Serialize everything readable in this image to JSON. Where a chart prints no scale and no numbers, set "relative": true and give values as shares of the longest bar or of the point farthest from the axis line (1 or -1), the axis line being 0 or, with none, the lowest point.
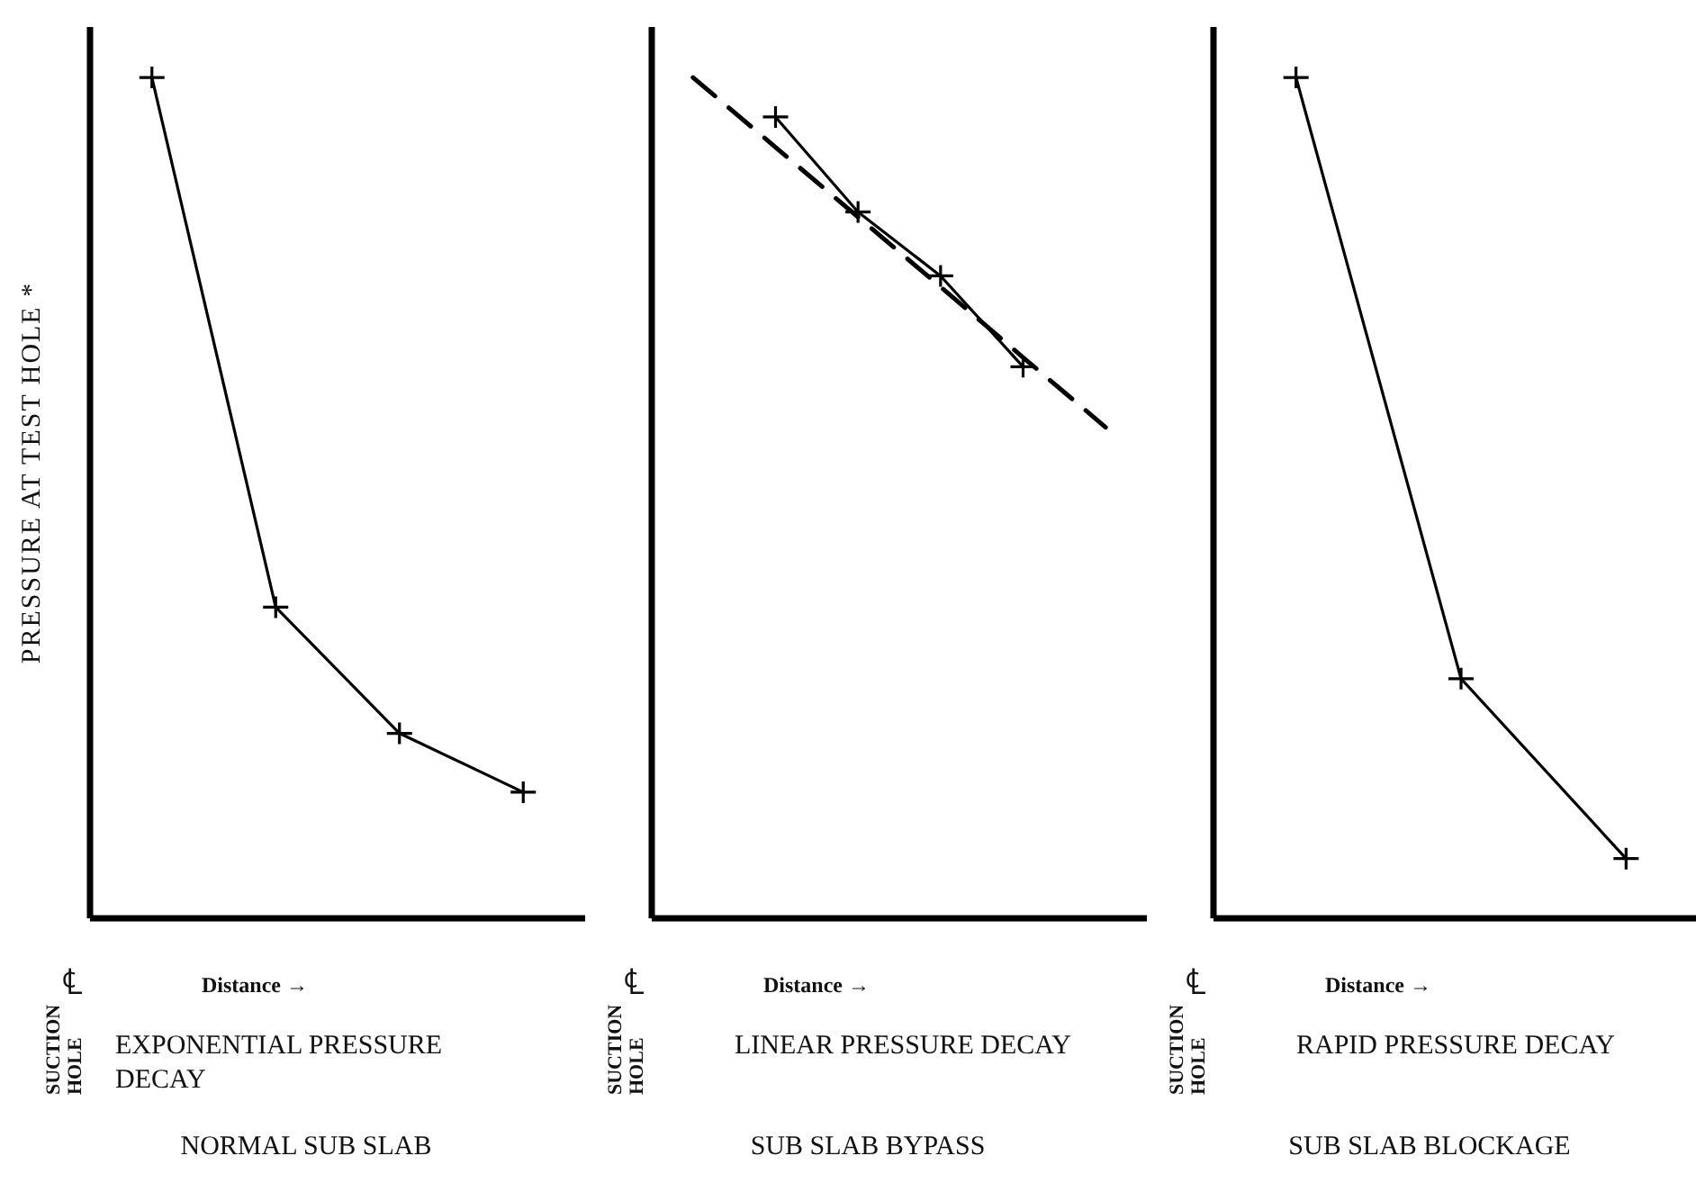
{
  "chart_data": [
    {
      "type": "line",
      "title": "NORMAL SUB SLAB",
      "subtitle": "EXPONENTIAL PRESSURE DECAY",
      "xlabel": "Distance →",
      "ylabel": "PRESSURE AT TEST HOLE *",
      "annotations": [
        "℄",
        "SUCTION HOLE"
      ],
      "relative": true,
      "categories": [
        null,
        null,
        null,
        null
      ],
      "series": [
        {
          "color": "#000000",
          "line_style": "solid",
          "marker": "cross",
          "values": [
            1,
            0.37,
            0.22,
            0.15
          ]
        }
      ]
    },
    {
      "type": "line",
      "title": "SUB SLAB BYPASS",
      "subtitle": "LINEAR PRESSURE DECAY",
      "xlabel": "Distance →",
      "annotations": [
        "℄",
        "SUCTION HOLE"
      ],
      "relative": true,
      "categories": [
        null,
        null,
        null,
        null,
        null,
        null
      ],
      "series": [
        {
          "color": "#000000",
          "line_style": "dashed",
          "marker": "none",
          "values": [
            1,
            0.917,
            0.834,
            0.751,
            0.667,
            0.584
          ]
        },
        {
          "color": "#000000",
          "line_style": "solid",
          "marker": "cross",
          "values": [
            null,
            0.953,
            0.84,
            0.764,
            0.656,
            null
          ]
        }
      ]
    },
    {
      "type": "line",
      "title": "SUB SLAB BLOCKAGE",
      "subtitle": "RAPID PRESSURE DECAY",
      "xlabel": "Distance →",
      "annotations": [
        "℄",
        "SUCTION HOLE"
      ],
      "relative": true,
      "categories": [
        null,
        null,
        null
      ],
      "series": [
        {
          "color": "#000000",
          "line_style": "solid",
          "marker": "cross",
          "values": [
            1,
            0.285,
            0.071
          ]
        }
      ]
    }
  ]
}
